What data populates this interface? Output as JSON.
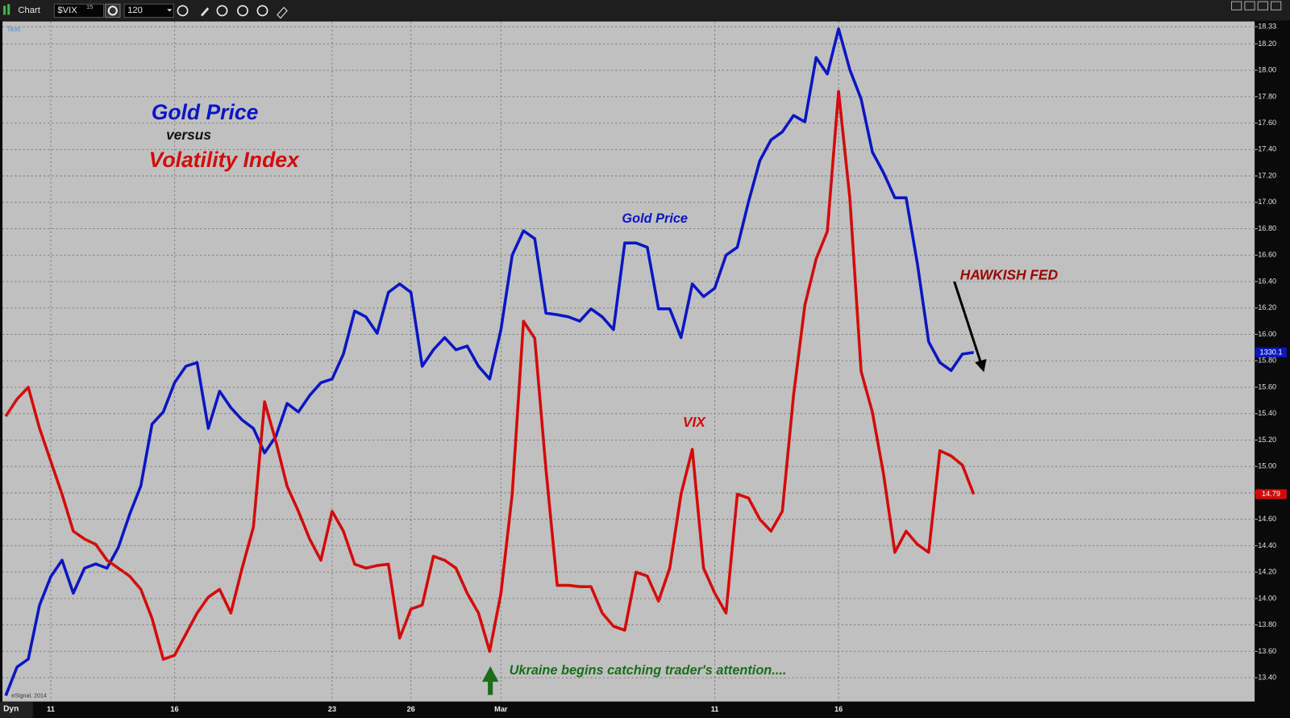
{
  "toolbar": {
    "window": "Chart",
    "symbol": "$VIX",
    "symbol_interval": "15",
    "interval": "120",
    "mode": "Dyn"
  },
  "chart_data": {
    "type": "line",
    "watermark": "eSignal, 2014",
    "corner_text": "Text",
    "annotations": {
      "title": "Gold Price",
      "versus": "versus",
      "subtitle": "Volatility Index",
      "gold_label": "Gold Price",
      "vix_label": "VIX",
      "hawkish": "HAWKISH FED",
      "ukraine": "Ukraine begins catching trader's attention...."
    },
    "categories": [
      null,
      null,
      null,
      null,
      "11",
      null,
      null,
      null,
      null,
      null,
      null,
      null,
      null,
      null,
      null,
      "16",
      null,
      null,
      null,
      null,
      null,
      null,
      null,
      null,
      null,
      null,
      null,
      null,
      null,
      "23",
      null,
      null,
      null,
      null,
      null,
      null,
      "26",
      null,
      null,
      null,
      null,
      null,
      null,
      null,
      "Mar",
      null,
      null,
      null,
      null,
      null,
      null,
      null,
      null,
      null,
      null,
      null,
      null,
      null,
      null,
      null,
      null,
      null,
      null,
      "11",
      null,
      null,
      null,
      null,
      null,
      null,
      null,
      null,
      null,
      null,
      "16",
      null,
      null,
      null,
      null,
      null,
      null,
      null,
      null,
      null,
      null,
      null,
      null
    ],
    "grid": true,
    "ylim": [
      13.22,
      18.37
    ],
    "yticks": [
      {
        "value": 13.4,
        "label": "13.40"
      },
      {
        "value": 13.6,
        "label": "13.60"
      },
      {
        "value": 13.8,
        "label": "13.80"
      },
      {
        "value": 14,
        "label": "14.00"
      },
      {
        "value": 14.2,
        "label": "14.20"
      },
      {
        "value": 14.4,
        "label": "14.40"
      },
      {
        "value": 14.6,
        "label": "14.60"
      },
      {
        "value": 14.8,
        "label": "14.80"
      },
      {
        "value": 15,
        "label": "15.00"
      },
      {
        "value": 15.2,
        "label": "15.20"
      },
      {
        "value": 15.4,
        "label": "15.40"
      },
      {
        "value": 15.6,
        "label": "15.60"
      },
      {
        "value": 15.8,
        "label": "15.80"
      },
      {
        "value": 16,
        "label": "16.00"
      },
      {
        "value": 16.2,
        "label": "16.20"
      },
      {
        "value": 16.4,
        "label": "16.40"
      },
      {
        "value": 16.6,
        "label": "16.60"
      },
      {
        "value": 16.8,
        "label": "16.80"
      },
      {
        "value": 17,
        "label": "17.00"
      },
      {
        "value": 17.2,
        "label": "17.20"
      },
      {
        "value": 17.4,
        "label": "17.40"
      },
      {
        "value": 17.6,
        "label": "17.60"
      },
      {
        "value": 17.8,
        "label": "17.80"
      },
      {
        "value": 18,
        "label": "18.00"
      },
      {
        "value": 18.2,
        "label": "18.20"
      },
      18.33
    ],
    "y2lim": [
      1264.4,
      1392.4
    ],
    "series": [
      {
        "name": "Gold Price",
        "color": "#0b16c4",
        "axis": "y2",
        "end_label": "1330.1",
        "values": [
          1265.5,
          1270.9,
          1272.4,
          1282.5,
          1287.9,
          1291.0,
          1284.8,
          1289.5,
          1290.3,
          1289.5,
          1293.4,
          1299.6,
          1305.0,
          1316.6,
          1318.9,
          1324.4,
          1327.5,
          1328.2,
          1315.8,
          1322.8,
          1319.7,
          1317.4,
          1315.8,
          1311.2,
          1314.3,
          1320.5,
          1318.9,
          1322.0,
          1324.4,
          1325.1,
          1329.8,
          1337.9,
          1336.8,
          1333.7,
          1341.4,
          1343.0,
          1341.4,
          1327.5,
          1330.6,
          1332.9,
          1330.6,
          1331.3,
          1327.5,
          1325.1,
          1334.4,
          1348.4,
          1353.0,
          1351.5,
          1337.5,
          1337.2,
          1336.8,
          1336.0,
          1338.3,
          1336.8,
          1334.4,
          1350.7,
          1350.7,
          1349.9,
          1338.3,
          1338.3,
          1332.9,
          1343.0,
          1340.6,
          1342.2,
          1348.4,
          1349.9,
          1358.5,
          1366.2,
          1370.1,
          1371.6,
          1374.7,
          1373.5,
          1385.6,
          1382.5,
          1391.0,
          1383.3,
          1377.8,
          1367.8,
          1363.9,
          1359.2,
          1359.2,
          1346.8,
          1332.1,
          1328.2,
          1326.7,
          1329.8,
          1330.1
        ]
      },
      {
        "name": "VIX",
        "color": "#d40a0a",
        "end_label": "14.79",
        "values": [
          15.38,
          15.51,
          15.6,
          15.29,
          15.04,
          14.79,
          14.51,
          14.45,
          14.41,
          14.29,
          14.23,
          14.17,
          14.07,
          13.85,
          13.54,
          13.57,
          13.73,
          13.89,
          14.01,
          14.07,
          13.89,
          14.23,
          14.54,
          15.49,
          15.19,
          14.85,
          14.66,
          14.45,
          14.29,
          14.66,
          14.51,
          14.26,
          14.23,
          14.25,
          14.26,
          13.7,
          13.92,
          13.95,
          14.32,
          14.29,
          14.23,
          14.04,
          13.89,
          13.6,
          14.04,
          14.79,
          16.1,
          15.97,
          14.98,
          14.1,
          14.1,
          14.09,
          14.09,
          13.89,
          13.79,
          13.76,
          14.2,
          14.17,
          13.98,
          14.23,
          14.79,
          15.13,
          14.23,
          14.04,
          13.89,
          14.79,
          14.76,
          14.6,
          14.51,
          14.66,
          15.54,
          16.22,
          16.57,
          16.78,
          17.84,
          17.03,
          15.72,
          15.41,
          14.94,
          14.35,
          14.51,
          14.41,
          14.35,
          15.12,
          15.08,
          15.01,
          14.79
        ]
      }
    ]
  }
}
